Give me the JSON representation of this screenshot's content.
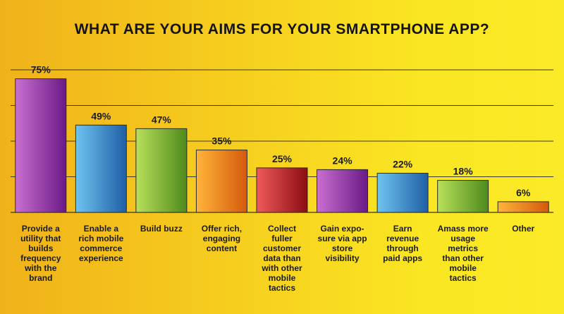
{
  "chart_data": {
    "type": "bar",
    "title": "WHAT ARE YOUR AIMS FOR YOUR SMARTPHONE APP?",
    "categories": [
      "Provide a utility that builds frequency with the brand",
      "Enable a rich mobile commerce experience",
      "Build buzz",
      "Offer rich, engaging content",
      "Collect fuller customer data than with other mobile tactics",
      "Gain expo-sure via app store visibility",
      "Earn revenue through paid apps",
      "Amass more usage metrics than other mobile tactics",
      "Other"
    ],
    "category_lines": [
      [
        "Provide a",
        "utility that",
        "builds",
        "frequency",
        "with the",
        "brand"
      ],
      [
        "Enable a",
        "rich mobile",
        "commerce",
        "experience"
      ],
      [
        "Build buzz"
      ],
      [
        "Offer rich,",
        "engaging",
        "content"
      ],
      [
        "Collect",
        "fuller",
        "customer",
        "data than",
        "with other",
        "mobile",
        "tactics"
      ],
      [
        "Gain expo-",
        "sure via app",
        "store",
        "visibility"
      ],
      [
        "Earn",
        "revenue",
        "through",
        "paid apps"
      ],
      [
        "Amass more",
        "usage",
        "metrics",
        "than other",
        "mobile",
        "tactics"
      ],
      [
        "Other"
      ]
    ],
    "values": [
      75,
      49,
      47,
      35,
      25,
      24,
      22,
      18,
      6
    ],
    "value_labels": [
      "75%",
      "49%",
      "47%",
      "35%",
      "25%",
      "24%",
      "22%",
      "18%",
      "6%"
    ],
    "unit": "%",
    "ylim": [
      0,
      80
    ],
    "grid": true,
    "bar_colors": [
      [
        "#c96fd0",
        "#6a1a86"
      ],
      [
        "#6fc4ef",
        "#1f5fa6"
      ],
      [
        "#b8e05a",
        "#4f8a1c"
      ],
      [
        "#ffb43a",
        "#d45a0c"
      ],
      [
        "#f05a5a",
        "#8a0d12"
      ],
      [
        "#c96fd0",
        "#6a1a86"
      ],
      [
        "#6fc4ef",
        "#1f5fa6"
      ],
      [
        "#b8e05a",
        "#4f8a1c"
      ],
      [
        "#ffb43a",
        "#d45a0c"
      ]
    ]
  }
}
